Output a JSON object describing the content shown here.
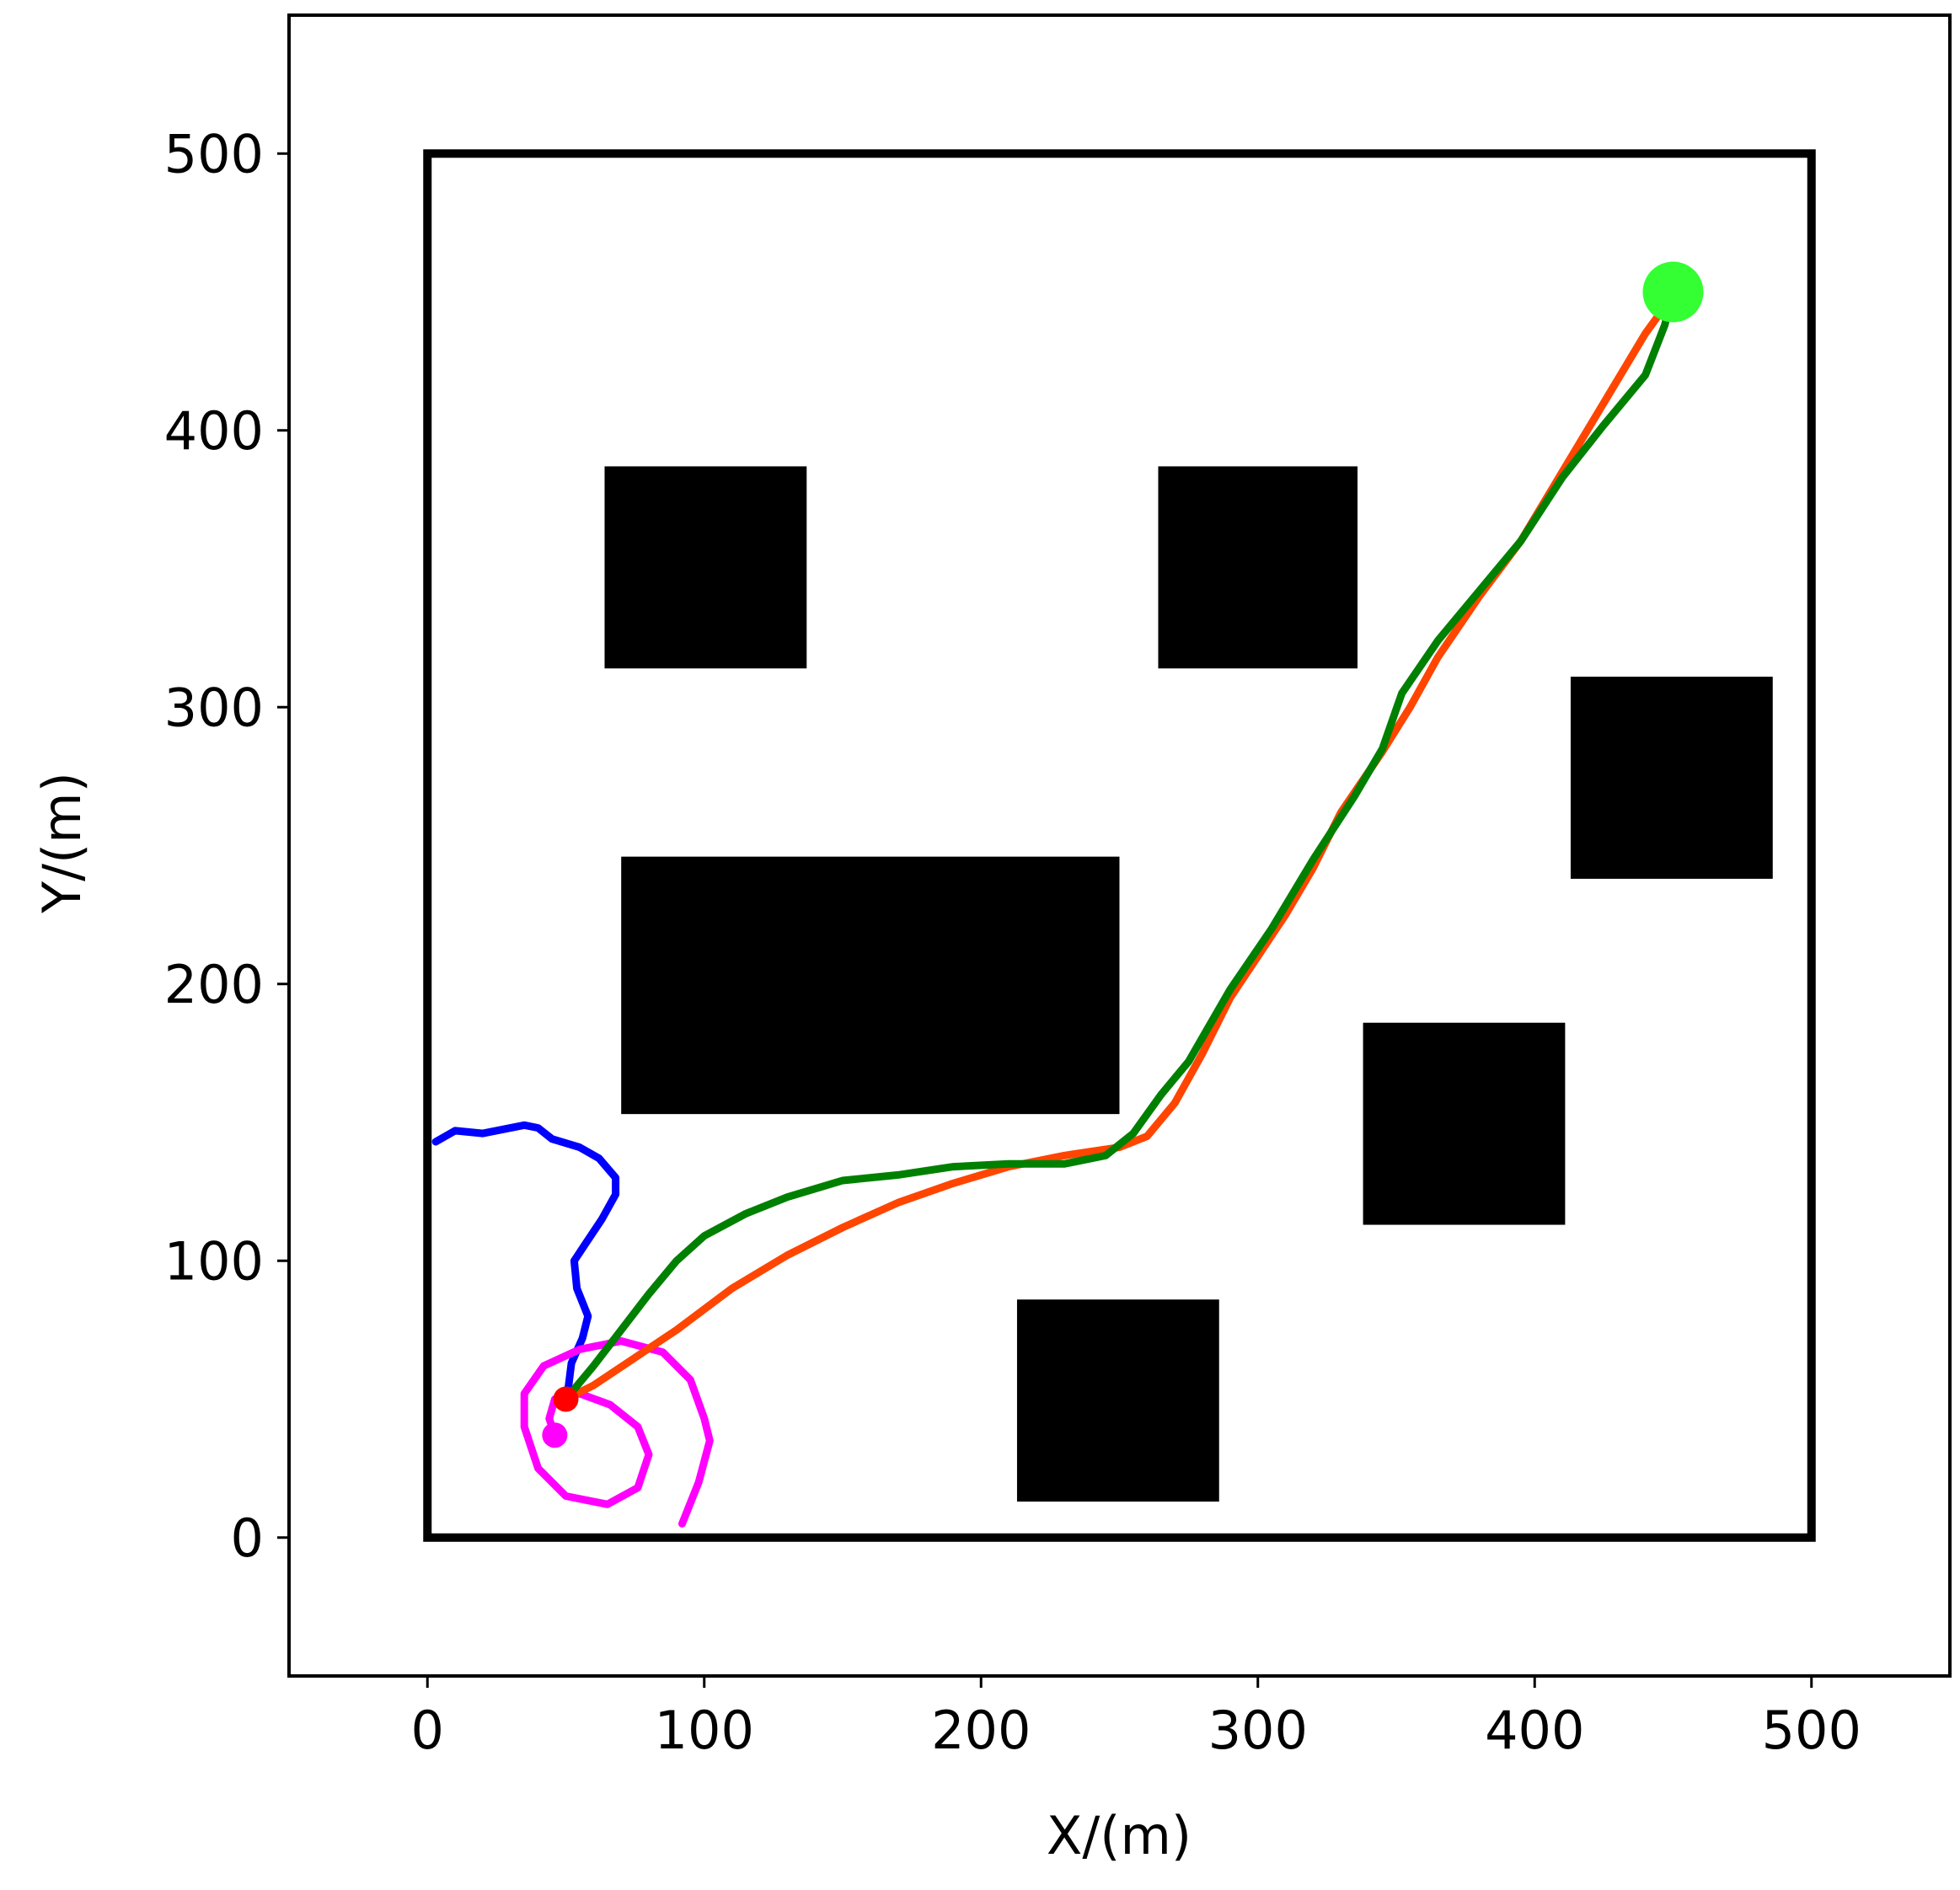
{
  "chart_data": {
    "type": "line",
    "xlabel": "X/(m)",
    "ylabel": "Y/(m)",
    "xlim": [
      -50,
      550
    ],
    "ylim": [
      -50,
      550
    ],
    "xticks": [
      0,
      100,
      200,
      300,
      400,
      500
    ],
    "yticks": [
      0,
      100,
      200,
      300,
      400,
      500
    ],
    "grid": false,
    "boundary": [
      0,
      0,
      500,
      500
    ],
    "obstacles": [
      [
        64,
        314,
        137,
        387
      ],
      [
        264,
        314,
        336,
        387
      ],
      [
        413,
        238,
        486,
        311
      ],
      [
        70,
        153,
        250,
        246
      ],
      [
        338,
        113,
        411,
        186
      ],
      [
        213,
        13,
        286,
        86
      ]
    ],
    "series": [
      {
        "color": "#0000ff",
        "x": [
          3,
          10,
          20,
          35,
          40,
          45,
          55,
          62,
          68,
          68,
          63,
          57,
          53,
          54,
          58,
          56,
          52,
          51,
          50
        ],
        "values": [
          143,
          147,
          146,
          149,
          148,
          144,
          141,
          137,
          130,
          124,
          115,
          106,
          100,
          90,
          80,
          72,
          63,
          55,
          50
        ]
      },
      {
        "color": "#ff00ff",
        "x": [
          46,
          44,
          46,
          55,
          66,
          76,
          80,
          76,
          65,
          50,
          40,
          35,
          35,
          42,
          55,
          70,
          85,
          95,
          100,
          102,
          98,
          92
        ],
        "values": [
          37,
          43,
          50,
          52,
          48,
          40,
          30,
          18,
          12,
          15,
          25,
          40,
          52,
          62,
          68,
          71,
          67,
          57,
          43,
          35,
          20,
          5
        ]
      },
      {
        "color": "#ff4500",
        "x": [
          50,
          60,
          75,
          90,
          110,
          130,
          150,
          170,
          190,
          210,
          230,
          250,
          260,
          270,
          280,
          290,
          300,
          310,
          320,
          330,
          345,
          355,
          365,
          380,
          395,
          410,
          425,
          440,
          448
        ],
        "values": [
          50,
          55,
          65,
          75,
          90,
          102,
          112,
          121,
          128,
          134,
          138,
          141,
          145,
          157,
          175,
          195,
          210,
          225,
          242,
          262,
          284,
          300,
          318,
          340,
          360,
          385,
          410,
          435,
          446
        ]
      },
      {
        "color": "#008000",
        "x": [
          50,
          60,
          70,
          80,
          90,
          100,
          115,
          130,
          150,
          170,
          190,
          210,
          230,
          245,
          255,
          265,
          275,
          290,
          305,
          320,
          335,
          345,
          352,
          365,
          380,
          395,
          410,
          425,
          440,
          447,
          450
        ],
        "values": [
          50,
          62,
          75,
          88,
          100,
          109,
          117,
          123,
          129,
          131,
          134,
          135,
          135,
          138,
          146,
          160,
          172,
          198,
          220,
          245,
          268,
          285,
          305,
          324,
          342,
          360,
          383,
          402,
          420,
          438,
          450
        ]
      }
    ],
    "markers": [
      {
        "x": 450,
        "y": 450,
        "color": "#33ff33"
      },
      {
        "x": 50,
        "y": 50,
        "color": "#ff0000"
      },
      {
        "x": 46,
        "y": 37,
        "color": "#ff00ff"
      }
    ]
  }
}
